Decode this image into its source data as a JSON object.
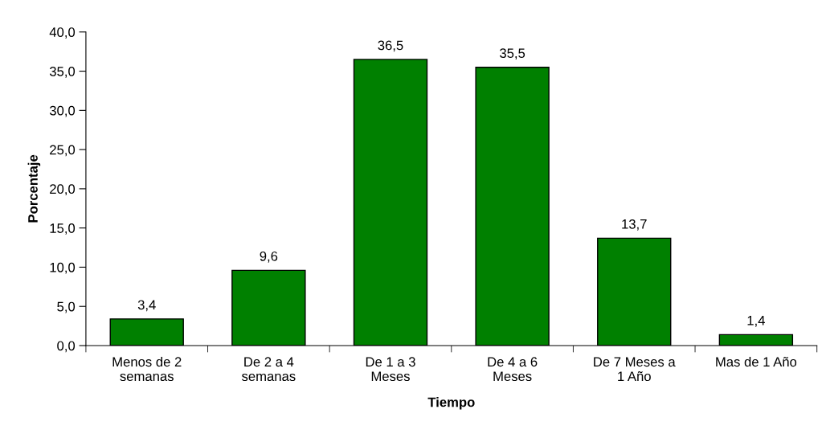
{
  "chart_data": {
    "type": "bar",
    "xlabel": "Tiempo",
    "ylabel": "Porcentaje",
    "categories": [
      "Menos de 2\nsemanas",
      "De 2 a 4\nsemanas",
      "De 1 a 3\nMeses",
      "De 4 a 6\nMeses",
      "De 7 Meses a\n1 Año",
      "Mas de 1 Año"
    ],
    "values": [
      3.4,
      9.6,
      36.5,
      35.5,
      13.7,
      1.4
    ],
    "value_labels": [
      "3,4",
      "9,6",
      "36,5",
      "35,5",
      "13,7",
      "1,4"
    ],
    "color": "#008000",
    "ylim": [
      0,
      40
    ],
    "yticks": [
      {
        "value": 0,
        "label": "0,0"
      },
      {
        "value": 5,
        "label": "5,0"
      },
      {
        "value": 10,
        "label": "10,0"
      },
      {
        "value": 15,
        "label": "15,0"
      },
      {
        "value": 20,
        "label": "20,0"
      },
      {
        "value": 25,
        "label": "25,0"
      },
      {
        "value": 30,
        "label": "30,0"
      },
      {
        "value": 35,
        "label": "35,0"
      },
      {
        "value": 40,
        "label": "40,0"
      }
    ],
    "grid": false
  }
}
